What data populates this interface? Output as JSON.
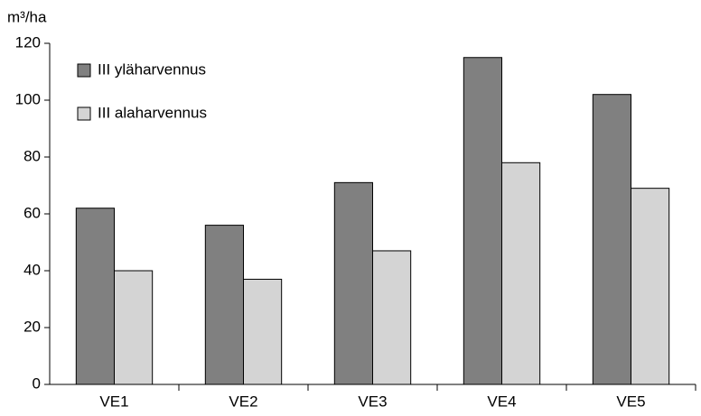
{
  "chart_data": {
    "type": "bar",
    "y_label": "m³/ha",
    "categories": [
      "VE1",
      "VE2",
      "VE3",
      "VE4",
      "VE5"
    ],
    "series": [
      {
        "name": "III yläharvennus",
        "color": "#808080",
        "values": [
          62,
          56,
          71,
          115,
          102
        ]
      },
      {
        "name": "III alaharvennus",
        "color": "#d4d4d4",
        "values": [
          40,
          37,
          47,
          78,
          69
        ]
      }
    ],
    "ylim": [
      0,
      120
    ],
    "yticks": [
      0,
      20,
      40,
      60,
      80,
      100,
      120
    ],
    "grid": false,
    "legend": "upper left"
  }
}
